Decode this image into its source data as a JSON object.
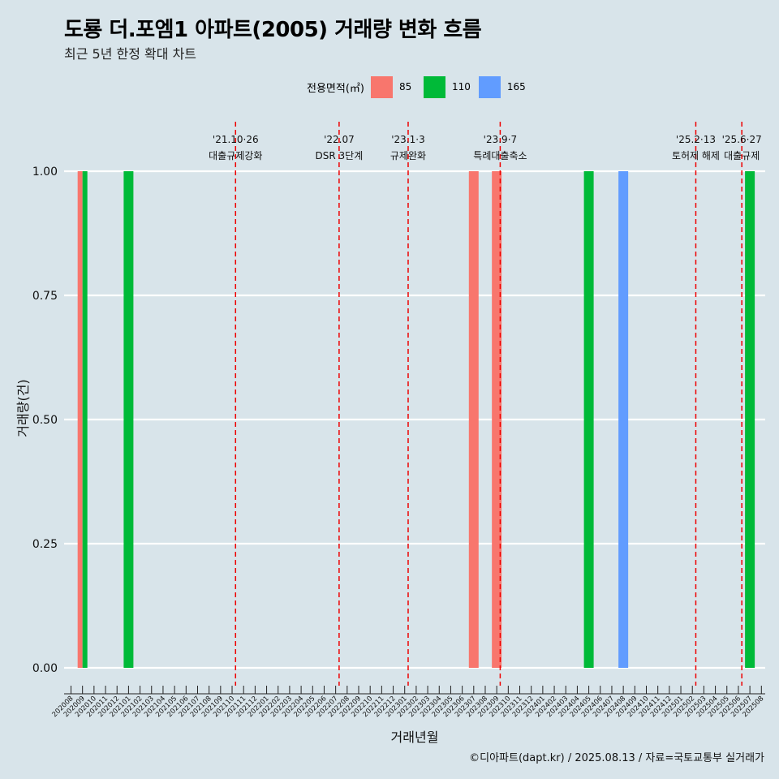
{
  "header": {
    "title": "도룡 더.포엠1 아파트(2005) 거래량 변화 흐름",
    "subtitle": "최근 5년 한정 확대 차트"
  },
  "legend": {
    "title": "전용면적(㎡)",
    "items": [
      {
        "label": "85",
        "color": "#F8766D"
      },
      {
        "label": "110",
        "color": "#00BA38"
      },
      {
        "label": "165",
        "color": "#619CFF"
      }
    ]
  },
  "caption": "©디아파트(dapt.kr) / 2025.08.13 / 자료=국토교통부 실거래가",
  "chart_data": {
    "type": "bar",
    "title": "도룡 더.포엠1 아파트(2005) 거래량 변화 흐름",
    "xlabel": "거래년월",
    "ylabel": "거래량(건)",
    "ylim": [
      0,
      1
    ],
    "yticks": [
      "0.00",
      "0.25",
      "0.50",
      "0.75",
      "1.00"
    ],
    "categories": [
      "202008",
      "202009",
      "202010",
      "202011",
      "202012",
      "202101",
      "202102",
      "202103",
      "202104",
      "202105",
      "202106",
      "202107",
      "202108",
      "202109",
      "202110",
      "202111",
      "202112",
      "202201",
      "202202",
      "202203",
      "202204",
      "202205",
      "202206",
      "202207",
      "202208",
      "202209",
      "202210",
      "202211",
      "202212",
      "202301",
      "202302",
      "202303",
      "202304",
      "202305",
      "202306",
      "202307",
      "202308",
      "202309",
      "202310",
      "202311",
      "202312",
      "202401",
      "202402",
      "202403",
      "202404",
      "202405",
      "202406",
      "202407",
      "202408",
      "202409",
      "202410",
      "202411",
      "202412",
      "202501",
      "202502",
      "202503",
      "202504",
      "202505",
      "202506",
      "202507",
      "202508"
    ],
    "bars": [
      {
        "month": "202009",
        "series": "85",
        "value": 1
      },
      {
        "month": "202009",
        "series": "110",
        "value": 1
      },
      {
        "month": "202101",
        "series": "110",
        "value": 1
      },
      {
        "month": "202307",
        "series": "85",
        "value": 1
      },
      {
        "month": "202309",
        "series": "85",
        "value": 1
      },
      {
        "month": "202405",
        "series": "110",
        "value": 1
      },
      {
        "month": "202408",
        "series": "165",
        "value": 1
      },
      {
        "month": "202507",
        "series": "110",
        "value": 1
      }
    ],
    "events": [
      {
        "date": "'21.10·26",
        "label": "대출규제강화",
        "month_pos": 14.3
      },
      {
        "date": "'22.07",
        "label": "DSR 3단계",
        "month_pos": 23.3
      },
      {
        "date": "'23.1·3",
        "label": "규제완화",
        "month_pos": 29.3
      },
      {
        "date": "'23.9·7",
        "label": "특례대출축소",
        "month_pos": 37.3
      },
      {
        "date": "'25.2·13",
        "label": "토허제 해제",
        "month_pos": 54.3
      },
      {
        "date": "'25.6·27",
        "label": "대출규제",
        "month_pos": 58.3
      }
    ]
  }
}
